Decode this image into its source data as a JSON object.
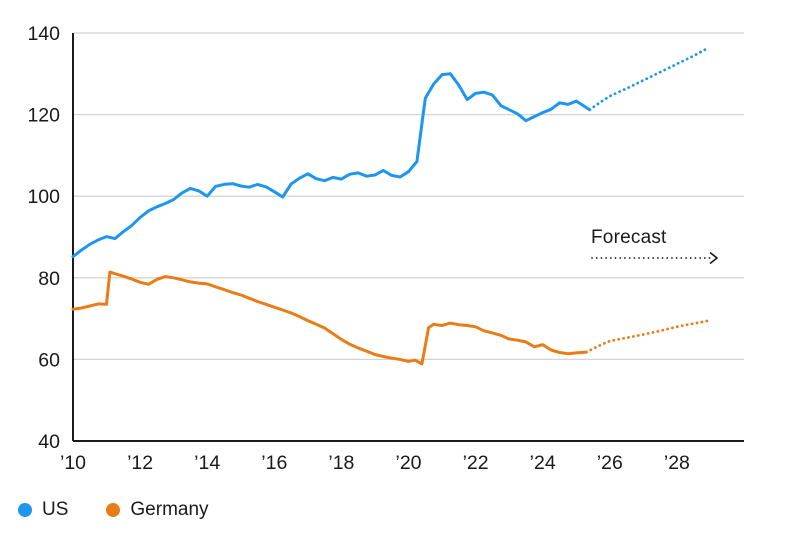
{
  "chart_data": {
    "type": "line",
    "title": "",
    "xlabel": "",
    "ylabel": "",
    "ylim": [
      40,
      140
    ],
    "xlim": [
      2010,
      2030
    ],
    "yticks": [
      40,
      60,
      80,
      100,
      120,
      140
    ],
    "xtick_years": [
      2010,
      2012,
      2014,
      2016,
      2018,
      2020,
      2022,
      2024,
      2026,
      2028
    ],
    "xtick_labels": [
      "’10",
      "’12",
      "’14",
      "’16",
      "’18",
      "’20",
      "’22",
      "’24",
      "’26",
      "’28"
    ],
    "grid": "horizontal-only",
    "legend_position": "bottom-left",
    "annotation": {
      "label": "Forecast",
      "style": "dotted-arrow-right"
    },
    "series": [
      {
        "name": "US",
        "color": "#1e96f0",
        "style": "solid",
        "points": [
          [
            2010.0,
            85.2
          ],
          [
            2010.25,
            86.8
          ],
          [
            2010.5,
            88.2
          ],
          [
            2010.75,
            89.3
          ],
          [
            2011.0,
            90.1
          ],
          [
            2011.25,
            89.6
          ],
          [
            2011.5,
            91.3
          ],
          [
            2011.75,
            92.8
          ],
          [
            2012.0,
            94.8
          ],
          [
            2012.25,
            96.4
          ],
          [
            2012.5,
            97.4
          ],
          [
            2012.75,
            98.2
          ],
          [
            2013.0,
            99.2
          ],
          [
            2013.25,
            100.8
          ],
          [
            2013.5,
            101.9
          ],
          [
            2013.75,
            101.3
          ],
          [
            2014.0,
            100.0
          ],
          [
            2014.25,
            102.4
          ],
          [
            2014.5,
            102.9
          ],
          [
            2014.75,
            103.1
          ],
          [
            2015.0,
            102.5
          ],
          [
            2015.25,
            102.2
          ],
          [
            2015.5,
            102.9
          ],
          [
            2015.75,
            102.3
          ],
          [
            2016.0,
            101.1
          ],
          [
            2016.25,
            99.8
          ],
          [
            2016.5,
            103.0
          ],
          [
            2016.75,
            104.4
          ],
          [
            2017.0,
            105.5
          ],
          [
            2017.25,
            104.3
          ],
          [
            2017.5,
            103.8
          ],
          [
            2017.75,
            104.6
          ],
          [
            2018.0,
            104.2
          ],
          [
            2018.25,
            105.4
          ],
          [
            2018.5,
            105.7
          ],
          [
            2018.75,
            104.9
          ],
          [
            2019.0,
            105.2
          ],
          [
            2019.25,
            106.3
          ],
          [
            2019.5,
            105.1
          ],
          [
            2019.75,
            104.7
          ],
          [
            2020.0,
            106.0
          ],
          [
            2020.25,
            108.5
          ],
          [
            2020.5,
            124.0
          ],
          [
            2020.75,
            127.5
          ],
          [
            2021.0,
            129.8
          ],
          [
            2021.25,
            130.0
          ],
          [
            2021.5,
            127.2
          ],
          [
            2021.75,
            123.7
          ],
          [
            2022.0,
            125.2
          ],
          [
            2022.25,
            125.5
          ],
          [
            2022.5,
            124.8
          ],
          [
            2022.75,
            122.2
          ],
          [
            2023.0,
            121.2
          ],
          [
            2023.25,
            120.2
          ],
          [
            2023.5,
            118.5
          ],
          [
            2023.75,
            119.5
          ],
          [
            2024.0,
            120.5
          ],
          [
            2024.25,
            121.3
          ],
          [
            2024.5,
            122.9
          ],
          [
            2024.75,
            122.5
          ],
          [
            2025.0,
            123.3
          ],
          [
            2025.4,
            121.2
          ]
        ]
      },
      {
        "name": "US forecast",
        "color": "#1e96f0",
        "style": "dotted",
        "points": [
          [
            2025.4,
            121.2
          ],
          [
            2025.75,
            123.2
          ],
          [
            2026.0,
            124.5
          ],
          [
            2026.25,
            125.5
          ],
          [
            2026.5,
            126.4
          ],
          [
            2027.0,
            128.4
          ],
          [
            2027.5,
            130.4
          ],
          [
            2028.0,
            132.4
          ],
          [
            2028.5,
            134.4
          ],
          [
            2028.9,
            136.2
          ]
        ]
      },
      {
        "name": "Germany",
        "color": "#e87d17",
        "style": "solid",
        "points": [
          [
            2010.0,
            72.3
          ],
          [
            2010.25,
            72.6
          ],
          [
            2010.5,
            73.1
          ],
          [
            2010.75,
            73.6
          ],
          [
            2011.0,
            73.5
          ],
          [
            2011.1,
            81.4
          ],
          [
            2011.25,
            81.0
          ],
          [
            2011.5,
            80.4
          ],
          [
            2011.75,
            79.7
          ],
          [
            2012.0,
            78.9
          ],
          [
            2012.25,
            78.4
          ],
          [
            2012.5,
            79.6
          ],
          [
            2012.75,
            80.3
          ],
          [
            2013.0,
            80.0
          ],
          [
            2013.25,
            79.5
          ],
          [
            2013.5,
            79.0
          ],
          [
            2013.75,
            78.7
          ],
          [
            2014.0,
            78.5
          ],
          [
            2014.25,
            77.8
          ],
          [
            2014.5,
            77.1
          ],
          [
            2014.75,
            76.4
          ],
          [
            2015.0,
            75.8
          ],
          [
            2015.25,
            75.0
          ],
          [
            2015.5,
            74.2
          ],
          [
            2015.75,
            73.5
          ],
          [
            2016.0,
            72.8
          ],
          [
            2016.25,
            72.1
          ],
          [
            2016.5,
            71.4
          ],
          [
            2016.75,
            70.5
          ],
          [
            2017.0,
            69.5
          ],
          [
            2017.25,
            68.6
          ],
          [
            2017.5,
            67.7
          ],
          [
            2017.75,
            66.3
          ],
          [
            2018.0,
            64.9
          ],
          [
            2018.25,
            63.7
          ],
          [
            2018.5,
            62.8
          ],
          [
            2018.75,
            62.0
          ],
          [
            2019.0,
            61.2
          ],
          [
            2019.25,
            60.7
          ],
          [
            2019.5,
            60.3
          ],
          [
            2019.75,
            60.0
          ],
          [
            2020.0,
            59.5
          ],
          [
            2020.2,
            59.8
          ],
          [
            2020.4,
            58.9
          ],
          [
            2020.6,
            67.8
          ],
          [
            2020.75,
            68.6
          ],
          [
            2021.0,
            68.3
          ],
          [
            2021.25,
            68.9
          ],
          [
            2021.5,
            68.5
          ],
          [
            2021.75,
            68.3
          ],
          [
            2022.0,
            68.0
          ],
          [
            2022.25,
            67.0
          ],
          [
            2022.5,
            66.5
          ],
          [
            2022.75,
            65.9
          ],
          [
            2023.0,
            65.0
          ],
          [
            2023.25,
            64.7
          ],
          [
            2023.5,
            64.3
          ],
          [
            2023.75,
            63.1
          ],
          [
            2024.0,
            63.6
          ],
          [
            2024.25,
            62.3
          ],
          [
            2024.5,
            61.7
          ],
          [
            2024.75,
            61.4
          ],
          [
            2025.0,
            61.6
          ],
          [
            2025.3,
            61.8
          ]
        ]
      },
      {
        "name": "Germany forecast",
        "color": "#e87d17",
        "style": "dotted",
        "points": [
          [
            2025.3,
            61.8
          ],
          [
            2025.5,
            62.6
          ],
          [
            2025.75,
            63.6
          ],
          [
            2026.0,
            64.5
          ],
          [
            2026.25,
            64.9
          ],
          [
            2026.5,
            65.3
          ],
          [
            2027.0,
            66.1
          ],
          [
            2027.5,
            67.0
          ],
          [
            2028.0,
            68.0
          ],
          [
            2028.5,
            68.8
          ],
          [
            2028.9,
            69.4
          ]
        ]
      }
    ]
  },
  "annotation": {
    "label": "Forecast"
  },
  "legend": {
    "items": [
      {
        "label": "US",
        "color": "#1e96f0"
      },
      {
        "label": "Germany",
        "color": "#e87d17"
      }
    ]
  },
  "colors": {
    "us": "#1e96f0",
    "germany": "#e87d17",
    "grid": "#d4d4d4",
    "axis": "#1a1a1a",
    "text": "#1a1a1a"
  }
}
